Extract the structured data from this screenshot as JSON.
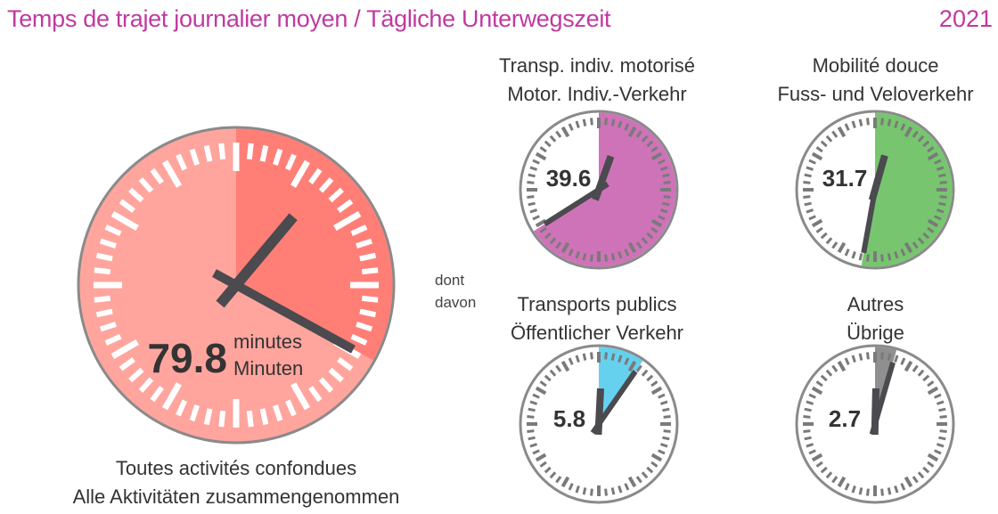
{
  "header": {
    "title": "Temps de trajet journalier moyen / Tägliche Unterwegszeit",
    "year": "2021"
  },
  "connector": {
    "line1": "dont",
    "line2": "davon"
  },
  "chart_data": [
    {
      "type": "clock",
      "value": 79.8,
      "unit_fr": "minutes",
      "unit_de": "Minuten",
      "value_label": "79.8",
      "caption_fr": "Toutes activités confondues",
      "caption_de": "Alle Aktivitäten zusammengenommen",
      "color": "#ff7f77",
      "base_color": "#ffa59e"
    },
    {
      "type": "clock",
      "value": 39.6,
      "value_label": "39.6",
      "title_fr": "Transp. indiv. motorisé",
      "title_de": "Motor. Indiv.-Verkehr",
      "color": "#cf73b8"
    },
    {
      "type": "clock",
      "value": 31.7,
      "value_label": "31.7",
      "title_fr": "Mobilité douce",
      "title_de": "Fuss- und Veloverkehr",
      "color": "#77c66f"
    },
    {
      "type": "clock",
      "value": 5.8,
      "value_label": "5.8",
      "title_fr": "Transports publics",
      "title_de": "Öffentlicher Verkehr",
      "color": "#66d1ef"
    },
    {
      "type": "clock",
      "value": 2.7,
      "value_label": "2.7",
      "title_fr": "Autres",
      "title_de": "Übrige",
      "color": "#8f8f8f"
    }
  ]
}
